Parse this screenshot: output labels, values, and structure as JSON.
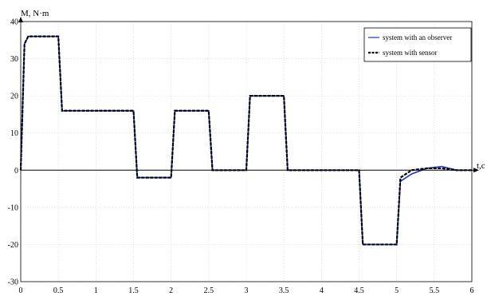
{
  "chart_data": {
    "type": "line",
    "ylabel": "M, N·m",
    "xlabel": "t,c",
    "xlim": [
      0,
      6
    ],
    "ylim": [
      -30,
      40
    ],
    "xticks": [
      0,
      0.5,
      1,
      1.5,
      2,
      2.5,
      3,
      3.5,
      4,
      4.5,
      5,
      5.5,
      6
    ],
    "xtick_labels": [
      "0",
      "0.5",
      "1",
      "1.5",
      "2",
      "2.5",
      "3",
      "3.5",
      "4",
      "4.5",
      "5",
      "5.5",
      "6"
    ],
    "yticks": [
      -30,
      -20,
      -10,
      0,
      10,
      20,
      30,
      40
    ],
    "ytick_labels": [
      "-30",
      "-20",
      "-10",
      "0",
      "10",
      "20",
      "30",
      "40"
    ],
    "grid": true,
    "legend_position": "top-right",
    "series": [
      {
        "name": "system with an observer",
        "color": "#1f2fd6",
        "style": "solid",
        "x": [
          0,
          0.05,
          0.1,
          0.5,
          0.55,
          1.5,
          1.55,
          2.0,
          2.05,
          2.5,
          2.55,
          3.0,
          3.05,
          3.5,
          3.55,
          4.5,
          4.55,
          5.0,
          5.05,
          5.2,
          5.4,
          5.6,
          5.8,
          6.0
        ],
        "y": [
          0,
          34,
          36,
          36,
          16,
          16,
          -2,
          -2,
          16,
          16,
          0,
          0,
          20,
          20,
          0,
          0,
          -20,
          -20,
          -3,
          -1,
          0.5,
          1,
          0,
          0
        ]
      },
      {
        "name": "system with sensor",
        "color": "#000000",
        "style": "dashed",
        "x": [
          0,
          0.05,
          0.1,
          0.5,
          0.55,
          1.5,
          1.55,
          2.0,
          2.05,
          2.5,
          2.55,
          3.0,
          3.05,
          3.5,
          3.55,
          4.5,
          4.55,
          5.0,
          5.05,
          5.2,
          5.4,
          5.6,
          5.8,
          6.0
        ],
        "y": [
          0,
          34,
          36,
          36,
          16,
          16,
          -2,
          -2,
          16,
          16,
          0,
          0,
          20,
          20,
          0,
          0,
          -20,
          -20,
          -2,
          0,
          0.5,
          0.5,
          0,
          0
        ]
      }
    ]
  },
  "colors": {
    "background": "#ffffff",
    "grid": "#d0d0d0",
    "observer": "#1f2fd6",
    "sensor": "#000000"
  }
}
